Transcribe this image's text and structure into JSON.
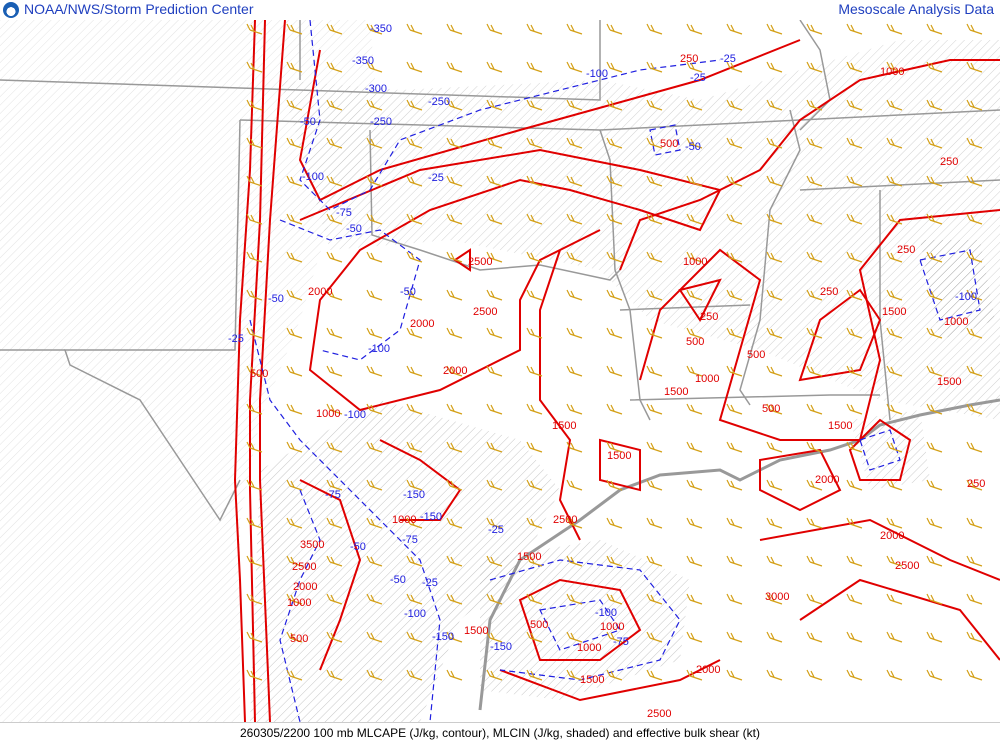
{
  "header": {
    "left_title": "NOAA/NWS/Storm Prediction Center",
    "right_title": "Mesoscale Analysis Data",
    "logo": "noaa-logo"
  },
  "caption": "260305/2200 100 mb MLCAPE (J/kg, contour), MLCIN (J/kg, shaded) and effective bulk shear (kt)",
  "colors": {
    "cape_contour": "#e00000",
    "cin_contour": "#2020e0",
    "borders": "#999999",
    "wind_barbs": "#d4a017",
    "title_text": "#1f3fbf"
  },
  "map": {
    "cape_labels": [
      "250",
      "1000",
      "250",
      "500",
      "2500",
      "2500",
      "2000",
      "2000",
      "2000",
      "1000",
      "500",
      "1500",
      "250",
      "1000",
      "500",
      "500",
      "1000",
      "1500",
      "250",
      "250",
      "1500",
      "1000",
      "1500",
      "1500",
      "1500",
      "2000",
      "2500",
      "1500",
      "2000",
      "2500",
      "3000",
      "3500",
      "2500",
      "2000",
      "1000",
      "500",
      "1000",
      "1500",
      "1000",
      "500",
      "2000",
      "2500",
      "1500",
      "250",
      "500",
      "1000"
    ],
    "cin_labels": [
      "-350",
      "-350",
      "-300",
      "-250",
      "-50",
      "-250",
      "-100",
      "-75",
      "-50",
      "-25",
      "-50",
      "-50",
      "-100",
      "-25",
      "-150",
      "-75",
      "-50",
      "-25",
      "-100",
      "-150",
      "-75",
      "-50",
      "-25",
      "-100",
      "-150",
      "-100",
      "-25",
      "-75",
      "-50",
      "-25",
      "-100",
      "-100",
      "-150"
    ]
  }
}
